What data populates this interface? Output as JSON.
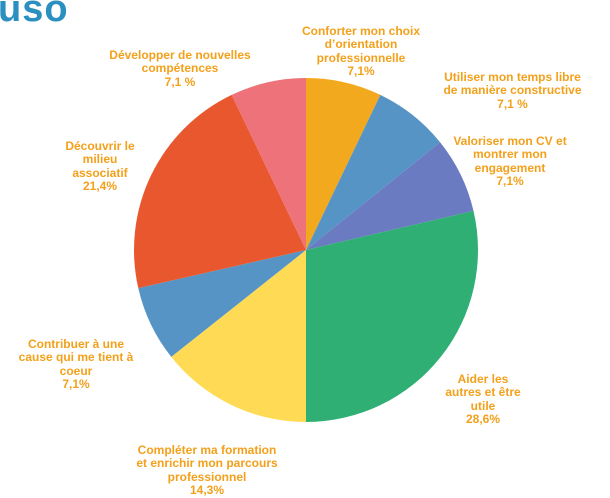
{
  "header": {
    "title_fragment": "uso"
  },
  "colors": {
    "label": "#f3a01b",
    "heading": "#2b8fc0"
  },
  "chart_data": {
    "type": "pie",
    "slices": [
      {
        "label": "Conforter mon choix\nd’orientation\nprofessionnelle",
        "value": 7.1,
        "value_label": "7,1%",
        "color": "#f3a91d"
      },
      {
        "label": "Utiliser mon temps libre\nde manière constructive",
        "value": 7.1,
        "value_label": "7,1 %",
        "color": "#5794c6"
      },
      {
        "label": "Valoriser mon CV et\nmontrer mon\nengagement",
        "value": 7.1,
        "value_label": "7,1%",
        "color": "#6a7bc2"
      },
      {
        "label": "Aider les\nautres et être\nutile",
        "value": 28.6,
        "value_label": "28,6%",
        "color": "#2faf74"
      },
      {
        "label": "Compléter ma formation\net enrichir mon parcours\nprofessionnel",
        "value": 14.3,
        "value_label": "14,3%",
        "color": "#ffdb55"
      },
      {
        "label": "Contribuer à une\ncause qui me tient à\ncoeur",
        "value": 7.1,
        "value_label": "7,1%",
        "color": "#5794c6"
      },
      {
        "label": "Découvrir le\nmilieu\nassociatif",
        "value": 21.4,
        "value_label": "21,4%",
        "color": "#e8572d"
      },
      {
        "label": "Développer de nouvelles\ncompétences",
        "value": 7.1,
        "value_label": "7,1 %",
        "color": "#ee727a"
      }
    ]
  }
}
